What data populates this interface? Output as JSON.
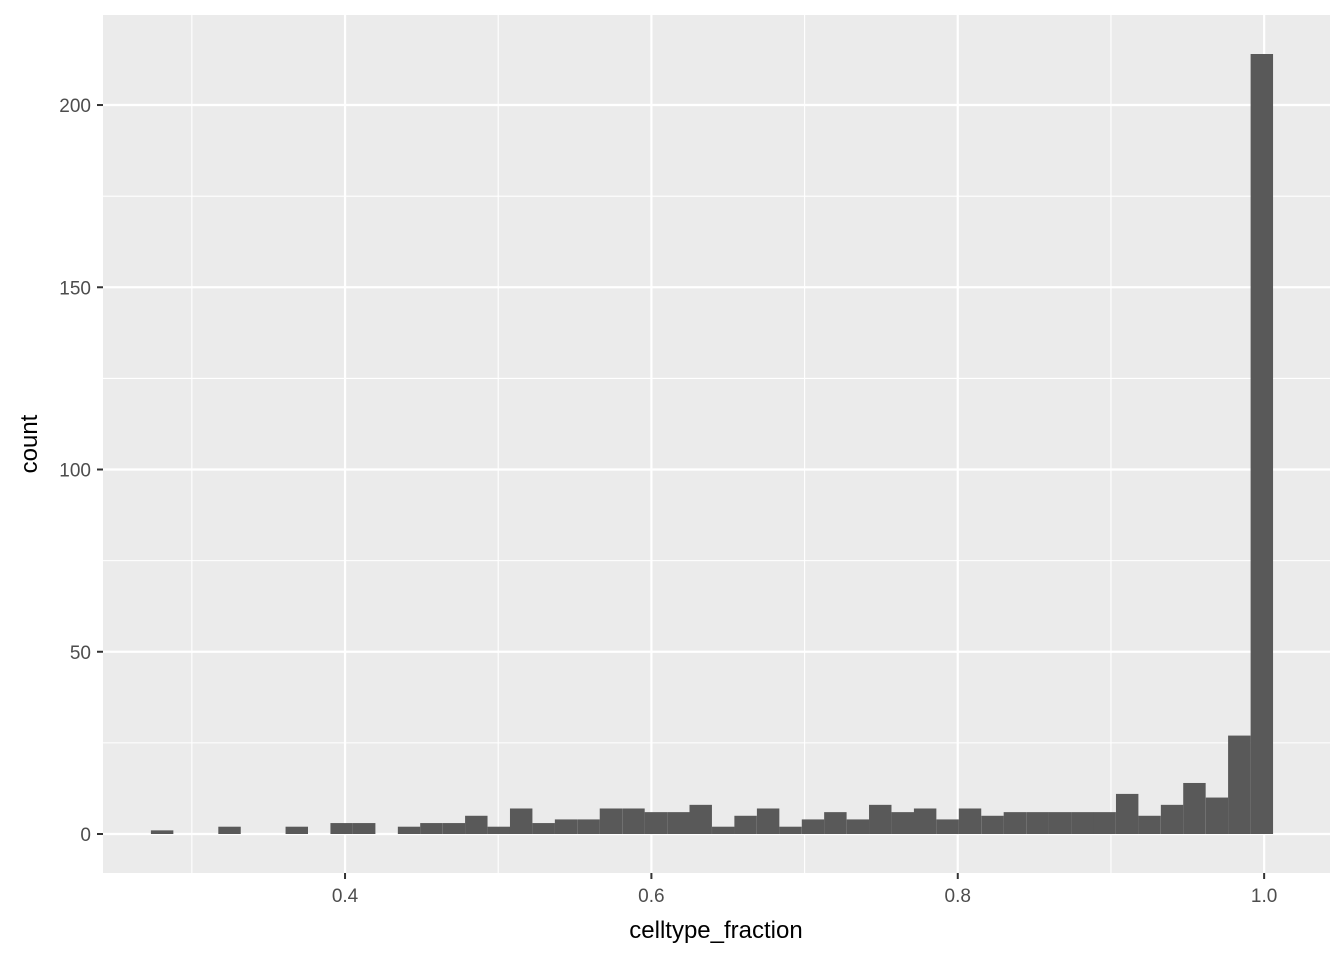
{
  "chart_data": {
    "type": "bar",
    "xlabel": "celltype_fraction",
    "ylabel": "count",
    "xlim": [
      0.242,
      1.043
    ],
    "ylim": [
      -10.7,
      224.7
    ],
    "x_ticks": [
      0.4,
      0.6,
      0.8,
      1.0
    ],
    "x_tick_labels": [
      "0.4",
      "0.6",
      "0.8",
      "1.0"
    ],
    "y_ticks": [
      0,
      50,
      100,
      150,
      200
    ],
    "y_tick_labels": [
      "0",
      "50",
      "100",
      "150",
      "200"
    ],
    "grid": true,
    "bin_width": 0.01465,
    "bin_centers": [
      0.2806,
      0.2953,
      0.3099,
      0.3246,
      0.3392,
      0.3539,
      0.3685,
      0.3832,
      0.3978,
      0.4125,
      0.4271,
      0.4418,
      0.4564,
      0.4711,
      0.4857,
      0.5004,
      0.515,
      0.5297,
      0.5443,
      0.559,
      0.5736,
      0.5883,
      0.6029,
      0.6176,
      0.6322,
      0.6469,
      0.6615,
      0.6762,
      0.6908,
      0.7055,
      0.7201,
      0.7348,
      0.7494,
      0.7641,
      0.7787,
      0.7934,
      0.808,
      0.8227,
      0.8373,
      0.852,
      0.8666,
      0.8813,
      0.8959,
      0.9106,
      0.9252,
      0.9399,
      0.9545,
      0.9692,
      0.9838,
      0.9985
    ],
    "values": [
      1,
      0,
      0,
      2,
      0,
      0,
      2,
      0,
      3,
      3,
      0,
      2,
      3,
      3,
      5,
      2,
      7,
      3,
      4,
      4,
      7,
      7,
      6,
      6,
      8,
      2,
      5,
      7,
      2,
      4,
      6,
      4,
      8,
      6,
      7,
      4,
      7,
      5,
      6,
      6,
      6,
      6,
      6,
      11,
      5,
      8,
      14,
      10,
      27,
      214
    ],
    "colors": {
      "panel_bg": "#ebebeb",
      "grid": "#ffffff",
      "bar_fill": "#595959",
      "tick_label": "#4d4d4d",
      "tick_mark": "#333333",
      "axis_title": "#000000"
    }
  }
}
